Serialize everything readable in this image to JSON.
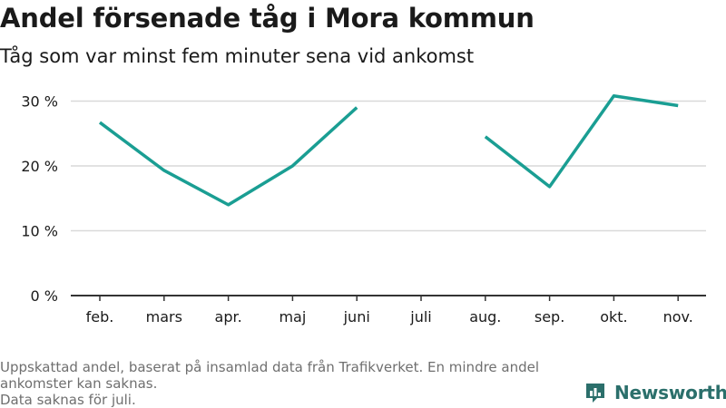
{
  "title": "Andel försenade tåg i Mora kommun",
  "subtitle": "Tåg som var minst fem minuter sena vid ankomst",
  "footer": {
    "line1": "Uppskattad andel, baserat på insamlad data från Trafikverket. En mindre andel ankomster kan saknas.",
    "line2": "Data saknas för juli."
  },
  "brand": {
    "name": "Newsworthy",
    "color": "#2b6f6b"
  },
  "chart_data": {
    "type": "line",
    "categories": [
      "feb.",
      "mars",
      "apr.",
      "maj",
      "juni",
      "juli",
      "aug.",
      "sep.",
      "okt.",
      "nov."
    ],
    "series": [
      {
        "values": [
          26.7,
          19.3,
          14.0,
          20.0,
          29.0,
          null,
          24.5,
          16.8,
          30.8,
          29.3
        ]
      }
    ],
    "yticks": [
      0,
      10,
      20,
      30
    ],
    "ytick_labels": [
      "0 %",
      "10 %",
      "20 %",
      "30 %"
    ],
    "ylim": [
      0,
      33
    ],
    "line_color": "#1a9e93",
    "grid": true,
    "xlabel": "",
    "ylabel": ""
  }
}
